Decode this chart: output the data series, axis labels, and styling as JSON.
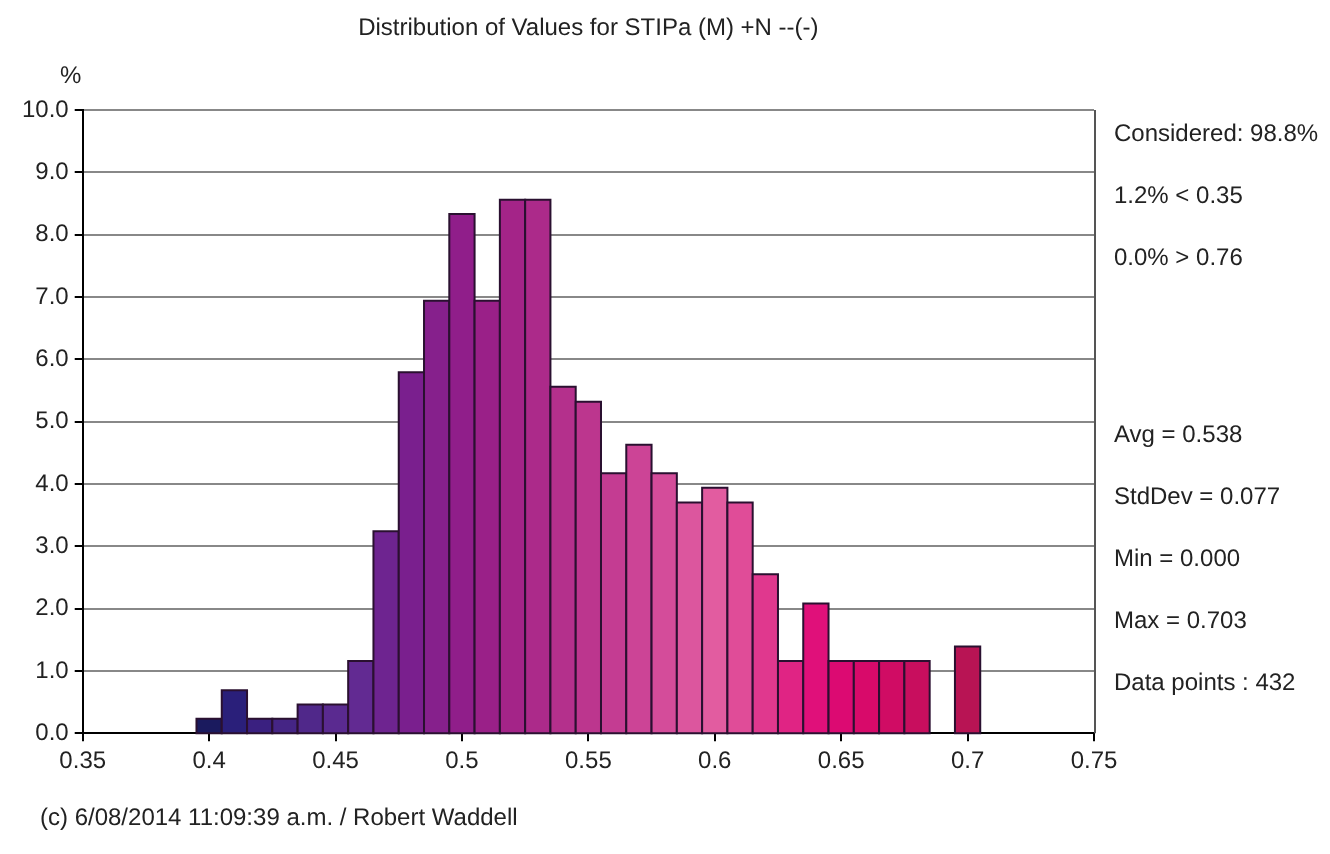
{
  "chart_data": {
    "type": "histogram",
    "title": "Distribution of Values for STIPa (M) +N --(-)",
    "ylabel": "%",
    "bins": [
      0.395,
      0.405,
      0.415,
      0.425,
      0.435,
      0.445,
      0.455,
      0.465,
      0.475,
      0.485,
      0.495,
      0.505,
      0.515,
      0.525,
      0.535,
      0.545,
      0.555,
      0.565,
      0.575,
      0.585,
      0.595,
      0.605,
      0.615,
      0.625,
      0.635,
      0.645,
      0.655,
      0.665,
      0.675,
      0.685,
      0.695,
      0.705
    ],
    "values": [
      0.23,
      0.69,
      0.23,
      0.23,
      0.46,
      0.46,
      1.16,
      3.24,
      5.79,
      6.94,
      8.33,
      6.94,
      8.56,
      8.56,
      5.56,
      5.32,
      4.17,
      4.63,
      4.17,
      3.7,
      3.94,
      3.7,
      2.55,
      1.16,
      2.08,
      1.16,
      1.16,
      1.16,
      1.16,
      0,
      1.39
    ],
    "colors": [
      "#1a1a5e",
      "#2a1f7a",
      "#3a2080",
      "#452585",
      "#50288a",
      "#5a2a90",
      "#622a92",
      "#6e2490",
      "#7a1f8e",
      "#86208c",
      "#901e8a",
      "#9a2088",
      "#a42488",
      "#ac2a8a",
      "#b4308c",
      "#bc368e",
      "#c43c92",
      "#cc4496",
      "#d44c9a",
      "#dc569e",
      "#e25ca0",
      "#e04c98",
      "#e0388e",
      "#e02484",
      "#e0107a",
      "#dc0a72",
      "#d80a6a",
      "#d00c64",
      "#c80e5e",
      null,
      "#b81454"
    ],
    "xlim": [
      0.35,
      0.75
    ],
    "xticks": [
      0.35,
      0.4,
      0.45,
      0.5,
      0.55,
      0.6,
      0.65,
      0.7,
      0.75
    ],
    "ylim": [
      0,
      10
    ],
    "yticks": [
      {
        "value": 0,
        "label": "0.0"
      },
      {
        "value": 1,
        "label": "1.0"
      },
      {
        "value": 2,
        "label": "2.0"
      },
      {
        "value": 3,
        "label": "3.0"
      },
      {
        "value": 4,
        "label": "4.0"
      },
      {
        "value": 5,
        "label": "5.0"
      },
      {
        "value": 6,
        "label": "6.0"
      },
      {
        "value": 7,
        "label": "7.0"
      },
      {
        "value": 8,
        "label": "8.0"
      },
      {
        "value": 9,
        "label": "9.0"
      },
      {
        "value": 10,
        "label": "10.0"
      }
    ],
    "grid": "y",
    "legend": false,
    "annotations": [
      "Considered: 98.8%",
      "1.2% < 0.35",
      "0.0% > 0.76",
      "Avg = 0.538",
      "StdDev = 0.077",
      "Min = 0.000",
      "Max = 0.703",
      "Data points : 432",
      "(c) 6/08/2014 11:09:39 a.m. / Robert Waddell"
    ]
  }
}
